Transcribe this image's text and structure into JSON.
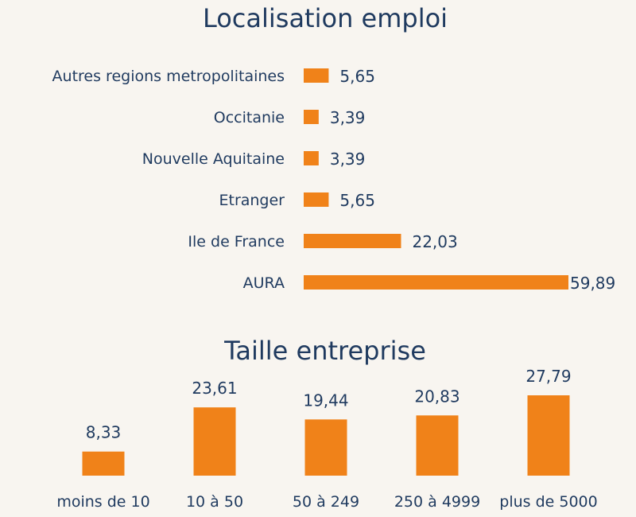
{
  "colors": {
    "bar": "#f08219",
    "text": "#1f3a5f",
    "background": "#f8f5f0"
  },
  "chart_data": [
    {
      "type": "bar",
      "orientation": "horizontal",
      "title": "Localisation emploi",
      "categories": [
        "Autres regions metropolitaines",
        "Occitanie",
        "Nouvelle Aquitaine",
        "Etranger",
        "Ile de France",
        "AURA"
      ],
      "values": [
        5.65,
        3.39,
        3.39,
        5.65,
        22.03,
        59.89
      ],
      "labels": [
        "5,65",
        "3,39",
        "3,39",
        "5,65",
        "22,03",
        "59,89"
      ],
      "grid": false
    },
    {
      "type": "bar",
      "orientation": "vertical",
      "title": "Taille entreprise",
      "categories": [
        "moins de 10",
        "10 à 50",
        "50 à 249",
        "250 à 4999",
        "plus de 5000"
      ],
      "values": [
        8.33,
        23.61,
        19.44,
        20.83,
        27.79
      ],
      "labels": [
        "8,33",
        "23,61",
        "19,44",
        "20,83",
        "27,79"
      ],
      "grid": false
    }
  ]
}
